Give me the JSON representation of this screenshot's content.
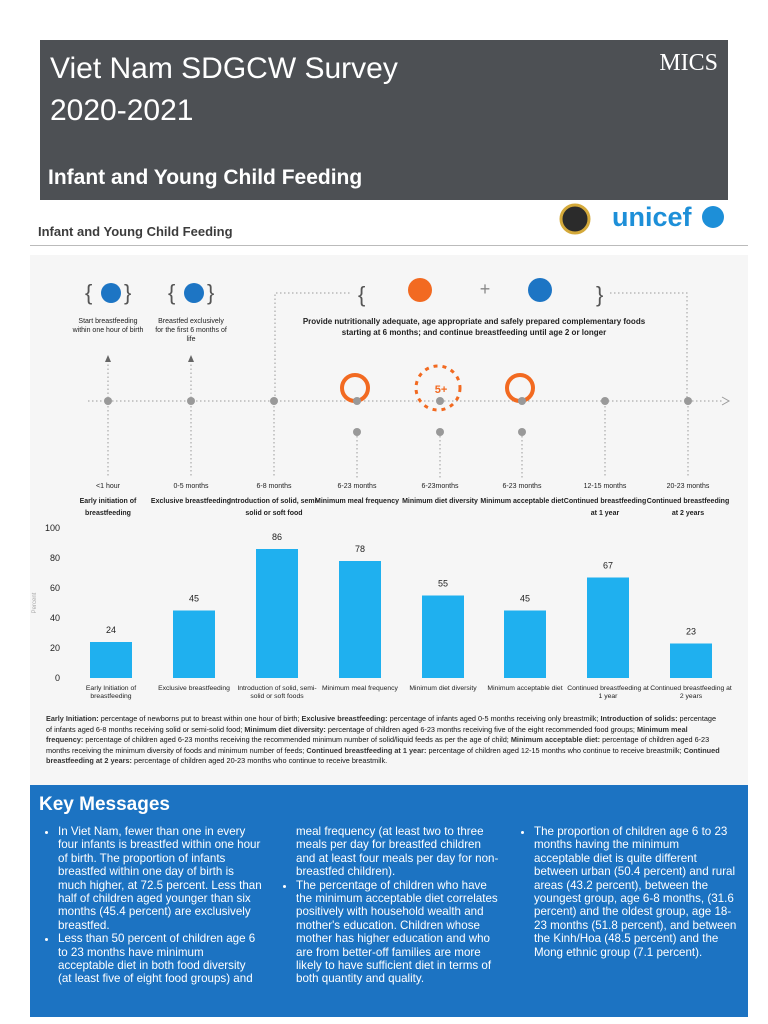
{
  "header": {
    "title": "Viet Nam SDGCW Survey",
    "years": "2020-2021",
    "subtitle": "Infant and Young Child Feeding",
    "logo": "MICS"
  },
  "section": {
    "title": "Infant and Young Child Feeding",
    "logo": "unicef"
  },
  "timeline": {
    "start_notes": [
      "Start breastfeeding within one hour of birth",
      "Breastfed exclusively for the first 6 months of life"
    ],
    "complementary_note": "Provide nutritionally adequate, age appropriate and safely prepared complementary foods starting at 6 months; and continue breastfeeding until age 2 or longer",
    "plus": "+",
    "diversity_badge": "5+",
    "ages": [
      "<1 hour",
      "0-5 months",
      "6-8 months",
      "6-23 months",
      "6-23months",
      "6-23 months",
      "12-15 months",
      "20-23 months"
    ],
    "indicators": [
      "Early initiation of breastfeeding",
      "Exclusive breastfeeding",
      "Introduction of solid, semi-solid or soft food",
      "Minimum meal frequency",
      "Minimum diet diversity",
      "Minimum acceptable diet",
      "Continued breastfeeding at 1 year",
      "Continued breastfeeding at 2 years"
    ]
  },
  "chart_data": {
    "type": "bar",
    "ylabel": "Percent",
    "categories": [
      "Early Initiation of breastfeeding",
      "Exclusive breastfeeding",
      "Introduction of solid, semi-solid or soft foods",
      "Minimum meal frequency",
      "Minimum diet diversity",
      "Minimum acceptable diet",
      "Continued breastfeeding at 1 year",
      "Continued breastfeeding at 2 years"
    ],
    "values": [
      24,
      45,
      86,
      78,
      55,
      45,
      67,
      23
    ],
    "color": "#1fb0ef",
    "ylim": [
      0,
      100
    ],
    "yticks": [
      0,
      20,
      40,
      60,
      80,
      100
    ],
    "grid": false
  },
  "definitions": [
    {
      "term": "Early Initiation:",
      "text": "percentage of newborns put to breast within one hour of birth;"
    },
    {
      "term": "Exclusive breastfeeding:",
      "text": "percentage of infants aged 0-5 months receiving only breastmilk;"
    },
    {
      "term": "Introduction of solids:",
      "text": "percentage of infants aged 6-8 months receiving solid or semi-solid food;"
    },
    {
      "term": "Minimum diet diversity:",
      "text": "percentage of children aged 6-23 months receiving five of the eight recommended food groups;"
    },
    {
      "term": "Minimum meal frequency:",
      "text": "percentage of children aged 6-23 months receiving the recommended minimum number of solid/liquid feeds as per the age of child;"
    },
    {
      "term": "Minimum acceptable diet:",
      "text": "percentage of children aged 6-23 months receiving the minimum diversity of foods and minimum number of feeds;"
    },
    {
      "term": "Continued breastfeeding at 1 year:",
      "text": "percentage of children aged 12-15 months who continue to receive breastmilk;"
    },
    {
      "term": "Continued breastfeeding at 2 years:",
      "text": "percentage of children aged 20-23 months who continue to receive breastmilk."
    }
  ],
  "key_messages": {
    "title": "Key Messages",
    "bullets": [
      "In Viet Nam, fewer than one in every four infants is breastfed within one hour of birth. The proportion of infants breastfed within one day of birth is much higher, at 72.5 percent. Less than half of children aged younger than six months (45.4 percent) are exclusively breastfed.",
      "Less than 50 percent of children age 6 to 23 months have minimum acceptable diet in both food diversity (at least five of eight food groups) and meal frequency (at least two to three meals per day for breastfed children and at least four meals per day for non-breastfed children).",
      "The percentage of children who have the minimum acceptable diet correlates positively with household wealth and mother's education. Children whose mother has higher education and who are from better-off families are more likely to have sufficient diet in terms of both quantity and quality.",
      "The proportion of children age 6 to 23 months having the minimum acceptable diet is quite different between urban (50.4 percent) and rural areas (43.2 percent), between the youngest group, age 6-8 months, (31.6 percent) and the oldest group, age 18-23 months (51.8 percent), and between the Kinh/Hoa (48.5 percent) and the Mong ethnic group (7.1 percent)."
    ]
  }
}
